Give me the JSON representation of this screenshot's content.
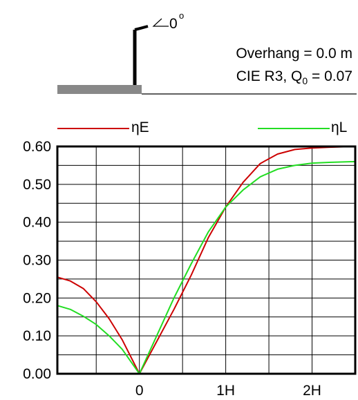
{
  "header": {
    "tilt_label": "0",
    "tilt_degree_mark": "o",
    "overhang_text": "Overhang =  0.0 m",
    "cie_prefix": "CIE R3, Q",
    "cie_subscript": "0",
    "cie_suffix": " = 0.07"
  },
  "colors": {
    "series_eta_e": "#cc0000",
    "series_eta_l": "#22dd22",
    "grid": "#000000",
    "road": "#888888"
  },
  "chart_data": {
    "type": "line",
    "title": "",
    "xlabel": "",
    "ylabel": "",
    "x_unit": "H",
    "xlim": [
      -1.9,
      5.0
    ],
    "ylim": [
      0.0,
      0.6
    ],
    "grid": true,
    "x_ticks": [
      {
        "value": 0,
        "label": "0"
      },
      {
        "value": 2,
        "label": "1H"
      },
      {
        "value": 4,
        "label": "2H"
      }
    ],
    "y_ticks": [
      {
        "value": 0.0,
        "label": "0.00"
      },
      {
        "value": 0.1,
        "label": "0.10"
      },
      {
        "value": 0.2,
        "label": "0.20"
      },
      {
        "value": 0.3,
        "label": "0.30"
      },
      {
        "value": 0.4,
        "label": "0.40"
      },
      {
        "value": 0.5,
        "label": "0.50"
      },
      {
        "value": 0.6,
        "label": "0.60"
      }
    ],
    "legend_position": "top",
    "series": [
      {
        "name": "ηE",
        "color": "#cc0000",
        "x": [
          -1.9,
          -1.6,
          -1.3,
          -1.0,
          -0.7,
          -0.4,
          0.0,
          0.4,
          0.8,
          1.2,
          1.6,
          2.0,
          2.4,
          2.8,
          3.2,
          3.6,
          4.0,
          4.4,
          5.0
        ],
        "y": [
          0.255,
          0.245,
          0.225,
          0.19,
          0.145,
          0.09,
          0.0,
          0.085,
          0.17,
          0.26,
          0.36,
          0.44,
          0.505,
          0.555,
          0.58,
          0.592,
          0.596,
          0.598,
          0.6
        ]
      },
      {
        "name": "ηL",
        "color": "#22dd22",
        "x": [
          -1.9,
          -1.6,
          -1.3,
          -1.0,
          -0.7,
          -0.4,
          0.0,
          0.4,
          0.8,
          1.2,
          1.6,
          2.0,
          2.4,
          2.8,
          3.2,
          3.6,
          4.0,
          4.4,
          5.0
        ],
        "y": [
          0.18,
          0.17,
          0.152,
          0.13,
          0.1,
          0.065,
          0.0,
          0.1,
          0.2,
          0.29,
          0.375,
          0.44,
          0.485,
          0.52,
          0.54,
          0.55,
          0.556,
          0.558,
          0.56
        ]
      }
    ]
  }
}
